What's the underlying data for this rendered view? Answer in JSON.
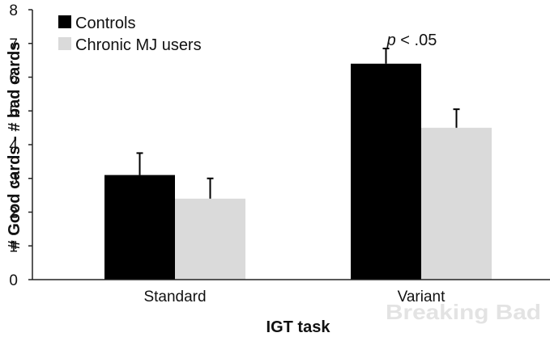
{
  "chart_data": {
    "type": "bar",
    "title": "",
    "xlabel": "IGT task",
    "ylabel": "# Good cards - # bad cards",
    "ylim": [
      0,
      8
    ],
    "yticks": [
      0,
      1,
      2,
      3,
      4,
      5,
      6,
      7,
      8
    ],
    "grid": false,
    "legend_position": "top-left",
    "categories": [
      "Standard",
      "Variant"
    ],
    "series": [
      {
        "name": "Controls",
        "color": "#000000",
        "values": [
          3.1,
          6.4
        ],
        "error": [
          0.65,
          0.45
        ]
      },
      {
        "name": "Chronic MJ users",
        "color": "#dadada",
        "values": [
          2.4,
          4.5
        ],
        "error": [
          0.6,
          0.55
        ]
      }
    ],
    "annotations": [
      {
        "text_prefix": "p",
        "text_suffix": " < .05",
        "category": "Variant"
      }
    ]
  },
  "watermark": {
    "text": "Breaking Bad"
  }
}
